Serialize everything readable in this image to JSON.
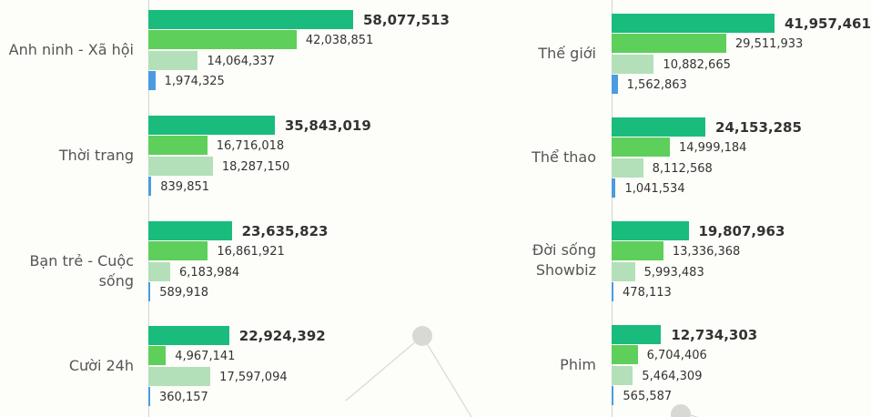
{
  "chart_data": [
    {
      "type": "bar",
      "orientation": "horizontal",
      "categories": [
        "Anh ninh - Xã hội",
        "Thời trang",
        "Bạn trẻ - Cuộc sống",
        "Cười 24h"
      ],
      "series": [
        {
          "values": [
            58077513,
            35843019,
            23635823,
            22924392
          ],
          "color": "#19bc7c"
        },
        {
          "values": [
            42038851,
            16716018,
            16861921,
            4967141
          ],
          "color": "#5dcf5a"
        },
        {
          "values": [
            14064337,
            18287150,
            6183984,
            17597094
          ],
          "color": "#b3e0b9"
        },
        {
          "values": [
            1974325,
            839851,
            589918,
            360157
          ],
          "color": "#4a9be0"
        }
      ],
      "data_labels": [
        [
          "58,077,513",
          "42,038,851",
          "14,064,337",
          "1,974,325"
        ],
        [
          "35,843,019",
          "16,716,018",
          "18,287,150",
          "839,851"
        ],
        [
          "23,635,823",
          "16,861,921",
          "6,183,984",
          "589,918"
        ],
        [
          "22,924,392",
          "4,967,141",
          "17,597,094",
          "360,157"
        ]
      ],
      "grid": false
    },
    {
      "type": "bar",
      "orientation": "horizontal",
      "categories": [
        "Thế giới",
        "Thể thao",
        "Đời sống Showbiz",
        "Phim"
      ],
      "series": [
        {
          "values": [
            41957461,
            24153285,
            19807963,
            12734303
          ],
          "color": "#19bc7c"
        },
        {
          "values": [
            29511933,
            14999184,
            13336368,
            6704406
          ],
          "color": "#5dcf5a"
        },
        {
          "values": [
            10882665,
            8112568,
            5993483,
            5464309
          ],
          "color": "#b3e0b9"
        },
        {
          "values": [
            1562863,
            1041534,
            478113,
            565587
          ],
          "color": "#4a9be0"
        }
      ],
      "data_labels": [
        [
          "41,957,461",
          "29,511,933",
          "10,882,665",
          "1,562,863"
        ],
        [
          "24,153,285",
          "14,999,184",
          "8,112,568",
          "1,041,534"
        ],
        [
          "19,807,963",
          "13,336,368",
          "5,993,483",
          "478,113"
        ],
        [
          "12,734,303",
          "6,704,406",
          "5,464,309",
          "565,587"
        ]
      ],
      "grid": false
    }
  ]
}
